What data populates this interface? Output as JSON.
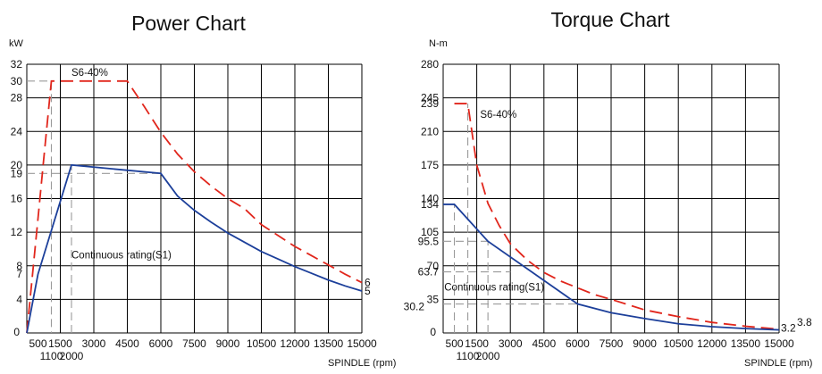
{
  "chart_data": [
    {
      "type": "line",
      "title": "Power Chart",
      "ylabel": "kW",
      "xlabel": "SPINDLE (rpm)",
      "xlim": [
        0,
        15000
      ],
      "ylim": [
        0,
        32
      ],
      "x_ticks_row1": [
        "500",
        "1500",
        "3000",
        "4500",
        "6000",
        "7500",
        "9000",
        "10500",
        "12000",
        "13500",
        "15000"
      ],
      "x_ticks_row1_values": [
        500,
        1500,
        3000,
        4500,
        6000,
        7500,
        9000,
        10500,
        12000,
        13500,
        15000
      ],
      "x_ticks_row2": [
        "1100",
        "2000"
      ],
      "x_ticks_row2_values": [
        1100,
        2000
      ],
      "zero_label": "0",
      "y_ticks": [
        "0",
        "4",
        "7",
        "8",
        "12",
        "16",
        "19",
        "20",
        "24",
        "28",
        "30",
        "32"
      ],
      "y_ticks_values": [
        0,
        4,
        7,
        8,
        12,
        16,
        19,
        20,
        24,
        28,
        30,
        32
      ],
      "x_grid": [
        0,
        1500,
        3000,
        4500,
        6000,
        7500,
        9000,
        10500,
        12000,
        13500,
        15000
      ],
      "y_grid": [
        0,
        4,
        8,
        12,
        16,
        20,
        24,
        28,
        32
      ],
      "grid": true,
      "series": [
        {
          "name": "S6-40%",
          "color": "#e1261c",
          "style": "dashed",
          "x": [
            0,
            250,
            500,
            750,
            1100,
            4500,
            5250,
            6000,
            6750,
            7500,
            8250,
            9000,
            9750,
            10500,
            11250,
            12000,
            12750,
            13500,
            14250,
            15000
          ],
          "y": [
            0,
            6.8,
            13.6,
            20.5,
            30,
            30,
            27.0,
            23.9,
            21.3,
            19.2,
            17.5,
            16.0,
            14.8,
            12.9,
            11.6,
            10.3,
            9.2,
            8.1,
            7.0,
            6.0
          ]
        },
        {
          "name": "Continuous rating(S1)",
          "color": "#1c3f9a",
          "style": "solid",
          "x": [
            0,
            500,
            2000,
            6000,
            6750,
            7500,
            8250,
            9000,
            9750,
            10500,
            11250,
            12000,
            12750,
            13500,
            14250,
            15000
          ],
          "y": [
            0,
            7,
            20,
            19,
            16.3,
            14.6,
            13.2,
            11.9,
            10.8,
            9.7,
            8.8,
            7.9,
            7.1,
            6.3,
            5.6,
            5.0
          ]
        }
      ],
      "reference_lines": [
        {
          "color": "#9a9a9a",
          "x": [
            0,
            1100,
            1100
          ],
          "y": [
            30,
            30,
            0
          ]
        },
        {
          "color": "#9a9a9a",
          "x": [
            0,
            6000
          ],
          "y": [
            19,
            19
          ]
        },
        {
          "color": "#9a9a9a",
          "x": [
            2000,
            2000
          ],
          "y": [
            0,
            20
          ]
        }
      ],
      "annotations": [
        {
          "text": "S6-40%",
          "x": 2000,
          "y": 30.6
        },
        {
          "text": "Continuous rating(S1)",
          "x": 2000,
          "y": 8.9
        }
      ],
      "end_labels": [
        {
          "text": "6",
          "series": 0
        },
        {
          "text": "5",
          "series": 1
        }
      ]
    },
    {
      "type": "line",
      "title": "Torque Chart",
      "ylabel": "N-m",
      "xlabel": "SPINDLE (rpm)",
      "xlim": [
        0,
        15000
      ],
      "ylim": [
        0,
        280
      ],
      "x_ticks_row1": [
        "500",
        "1500",
        "3000",
        "4500",
        "6000",
        "7500",
        "9000",
        "10500",
        "12000",
        "13500",
        "15000"
      ],
      "x_ticks_row1_values": [
        500,
        1500,
        3000,
        4500,
        6000,
        7500,
        9000,
        10500,
        12000,
        13500,
        15000
      ],
      "x_ticks_row2": [
        "1100",
        "2000"
      ],
      "x_ticks_row2_values": [
        1100,
        2000
      ],
      "zero_label": "0",
      "y_ticks": [
        "0",
        "35",
        "63.7",
        "70",
        "95.5",
        "105",
        "134",
        "140",
        "175",
        "210",
        "239",
        "245",
        "280"
      ],
      "y_ticks_values": [
        0,
        35,
        63.7,
        70,
        95.5,
        105,
        134,
        140,
        175,
        210,
        239,
        245,
        280
      ],
      "y_tick_extra": {
        "text": "30.2",
        "value": 30.2
      },
      "x_grid": [
        0,
        1500,
        3000,
        4500,
        6000,
        7500,
        9000,
        10500,
        12000,
        13500,
        15000
      ],
      "y_grid": [
        0,
        35,
        70,
        105,
        140,
        175,
        210,
        245,
        280
      ],
      "grid": true,
      "series": [
        {
          "name": "S6-40%",
          "color": "#e1261c",
          "style": "dashed",
          "x": [
            500,
            1100,
            1500,
            2000,
            2500,
            3000,
            3750,
            4500,
            5250,
            6000,
            6750,
            7500,
            9000,
            10500,
            12000,
            13500,
            15000
          ],
          "y": [
            239,
            239,
            175,
            135,
            112,
            93,
            76,
            63,
            54,
            47,
            40,
            35,
            24,
            17,
            11,
            7,
            3.8
          ]
        },
        {
          "name": "Continuous rating(S1)",
          "color": "#1c3f9a",
          "style": "solid",
          "x": [
            0,
            500,
            2000,
            6000,
            7500,
            9000,
            10500,
            12000,
            13500,
            15000
          ],
          "y": [
            134,
            134,
            95.5,
            30.2,
            21,
            15,
            9.5,
            6.5,
            4.5,
            3.2
          ]
        }
      ],
      "reference_lines": [
        {
          "color": "#9a9a9a",
          "x": [
            500,
            500
          ],
          "y": [
            0,
            134
          ]
        },
        {
          "color": "#9a9a9a",
          "x": [
            1100,
            1100
          ],
          "y": [
            0,
            239
          ]
        },
        {
          "color": "#9a9a9a",
          "x": [
            0,
            2000
          ],
          "y": [
            95.5,
            95.5
          ]
        },
        {
          "color": "#9a9a9a",
          "x": [
            2000,
            2000
          ],
          "y": [
            0,
            95.5
          ]
        },
        {
          "color": "#9a9a9a",
          "x": [
            0,
            3000
          ],
          "y": [
            63.7,
            63.7
          ]
        },
        {
          "color": "#9a9a9a",
          "x": [
            0,
            6000
          ],
          "y": [
            30.2,
            30.2
          ]
        }
      ],
      "annotations": [
        {
          "text": "S6-40%",
          "x": 1650,
          "y": 224
        },
        {
          "text": "Continuous rating(S1)",
          "x": 50,
          "y": 44
        }
      ],
      "end_labels": [
        {
          "text": "3.2",
          "series": 1
        },
        {
          "text": "3.8",
          "series": 0
        }
      ]
    }
  ]
}
